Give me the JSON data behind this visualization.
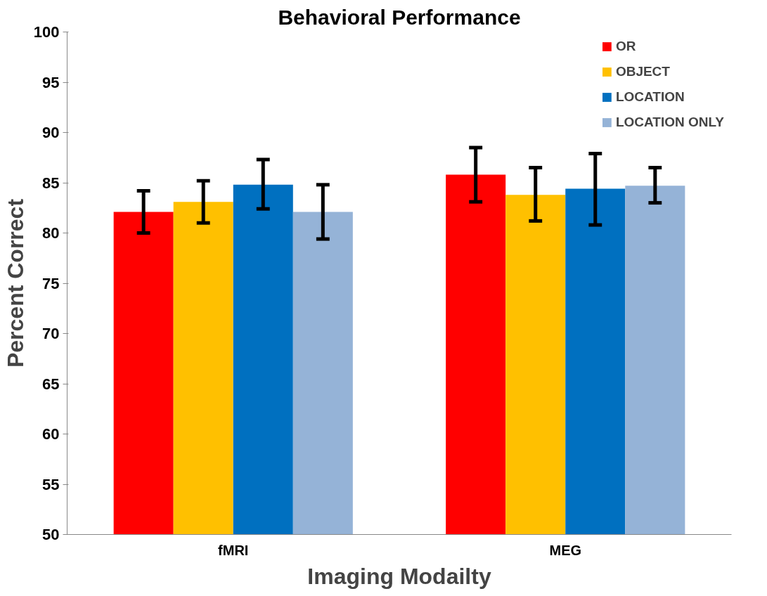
{
  "chart_data": {
    "type": "bar",
    "title": "Behavioral Performance",
    "xlabel": "Imaging Modailty",
    "ylabel": "Percent Correct",
    "categories": [
      "fMRI",
      "MEG"
    ],
    "series": [
      {
        "name": "OR",
        "color": "#ff0000",
        "values": [
          82.1,
          85.8
        ],
        "errors": [
          [
            80.0,
            84.2
          ],
          [
            83.1,
            88.5
          ]
        ]
      },
      {
        "name": "OBJECT",
        "color": "#ffc000",
        "values": [
          83.1,
          83.8
        ],
        "errors": [
          [
            81.0,
            85.2
          ],
          [
            81.2,
            86.5
          ]
        ]
      },
      {
        "name": "LOCATION",
        "color": "#0070c0",
        "values": [
          84.8,
          84.4
        ],
        "errors": [
          [
            82.4,
            87.3
          ],
          [
            80.8,
            87.9
          ]
        ]
      },
      {
        "name": "LOCATION ONLY",
        "color": "#95b3d7",
        "values": [
          82.1,
          84.7
        ],
        "errors": [
          [
            79.4,
            84.8
          ],
          [
            83.0,
            86.5
          ]
        ]
      }
    ],
    "ylim": [
      50,
      100
    ],
    "yticks": [
      50,
      55,
      60,
      65,
      70,
      75,
      80,
      85,
      90,
      95,
      100
    ],
    "grid": false,
    "legend": "top right"
  }
}
